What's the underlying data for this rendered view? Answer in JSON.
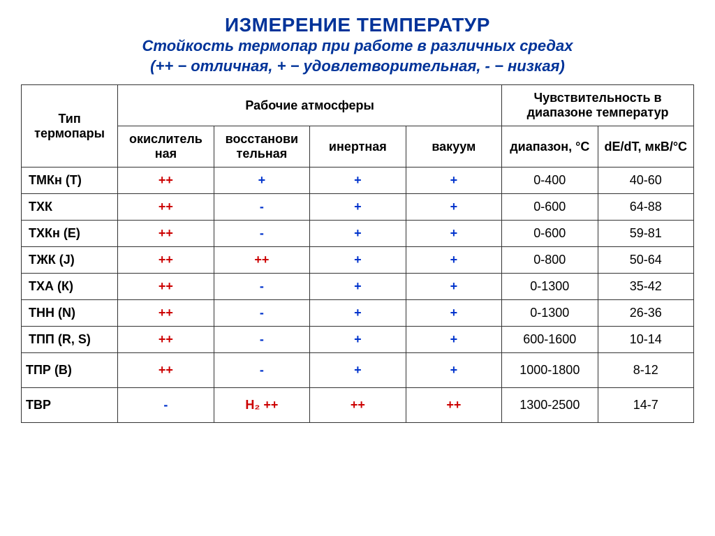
{
  "title": {
    "main": "ИЗМЕРЕНИЕ ТЕМПЕРАТУР",
    "sub1": "Стойкость термопар при работе в различных средах",
    "sub2": "(++ − отличная, + − удовлетворительная, - − низкая)"
  },
  "headers": {
    "type": "Тип термопары",
    "atm_group": "Рабочие атмосферы",
    "sens_group": "Чувствительность в диапазоне температур",
    "oxid": "окислитель\nная",
    "reduc": "восстанови\nтельная",
    "inert": "инертная",
    "vacuum": "вакуум",
    "range": "диапазон, °С",
    "dedt": "dE/dT, мкВ/°С"
  },
  "rows": [
    {
      "type": "ТМКн (Т)",
      "oxid": "++",
      "oxid_c": "red",
      "red": "+",
      "red_c": "blue",
      "inert": "+",
      "inert_c": "blue",
      "vac": "+",
      "vac_c": "blue",
      "range": "0-400",
      "dedt": "40-60",
      "tall": false
    },
    {
      "type": "ТХК",
      "oxid": "++",
      "oxid_c": "red",
      "red": "-",
      "red_c": "blue",
      "inert": "+",
      "inert_c": "blue",
      "vac": "+",
      "vac_c": "blue",
      "range": "0-600",
      "dedt": "64-88",
      "tall": false
    },
    {
      "type": "ТХКн (Е)",
      "oxid": "++",
      "oxid_c": "red",
      "red": "-",
      "red_c": "blue",
      "inert": "+",
      "inert_c": "blue",
      "vac": "+",
      "vac_c": "blue",
      "range": "0-600",
      "dedt": "59-81",
      "tall": false
    },
    {
      "type": "ТЖК (J)",
      "oxid": "++",
      "oxid_c": "red",
      "red": "++",
      "red_c": "red",
      "inert": "+",
      "inert_c": "blue",
      "vac": "+",
      "vac_c": "blue",
      "range": "0-800",
      "dedt": "50-64",
      "tall": false
    },
    {
      "type": "ТХА (К)",
      "oxid": "++",
      "oxid_c": "red",
      "red": "-",
      "red_c": "blue",
      "inert": "+",
      "inert_c": "blue",
      "vac": "+",
      "vac_c": "blue",
      "range": "0-1300",
      "dedt": "35-42",
      "tall": false
    },
    {
      "type": "ТНН (N)",
      "oxid": "++",
      "oxid_c": "red",
      "red": "-",
      "red_c": "blue",
      "inert": "+",
      "inert_c": "blue",
      "vac": "+",
      "vac_c": "blue",
      "range": "0-1300",
      "dedt": "26-36",
      "tall": false
    },
    {
      "type": "ТПП (R, S)",
      "oxid": "++",
      "oxid_c": "red",
      "red": "-",
      "red_c": "blue",
      "inert": "+",
      "inert_c": "blue",
      "vac": "+",
      "vac_c": "blue",
      "range": "600-1600",
      "dedt": "10-14",
      "tall": false
    },
    {
      "type": "ТПР (В)",
      "oxid": "++",
      "oxid_c": "red",
      "red": "-",
      "red_c": "blue",
      "inert": "+",
      "inert_c": "blue",
      "vac": "+",
      "vac_c": "blue",
      "range": "1000-1800",
      "dedt": "8-12",
      "tall": true
    },
    {
      "type": "ТВР",
      "oxid": "-",
      "oxid_c": "blue",
      "red": "H₂ ++",
      "red_c": "red",
      "inert": "++",
      "inert_c": "red",
      "vac": "++",
      "vac_c": "red",
      "range": "1300-2500",
      "dedt": "14-7",
      "tall": true
    }
  ],
  "style": {
    "title_color": "#003399",
    "border_color": "#333333",
    "red": "#cc0000",
    "blue": "#0033cc",
    "background": "#ffffff",
    "title_fontsize": 28,
    "subtitle_fontsize": 22,
    "cell_fontsize": 18
  }
}
